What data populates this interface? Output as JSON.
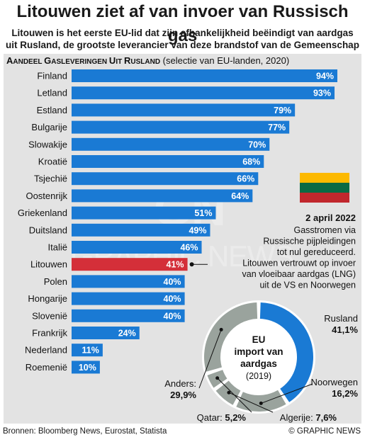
{
  "headline": "Litouwen ziet af van invoer van Russisch gas",
  "subtitle_lines": [
    "Litouwen is het eerste EU-lid dat zijn afhankelijkheid beëindigt van aardgas",
    "uit Rusland, de grootste leverancier van deze brandstof van de Gemeenschap"
  ],
  "source": "Bronnen: Bloomberg News, Eurostat, Statista",
  "credit": "© GRAPHIC NEWS",
  "watermark": "GRAPHIC NEWS",
  "colors": {
    "bar": "#1a7ad4",
    "highlight": "#d42f39",
    "panel": "#e3e3e3",
    "donut_main": "#1a7ad4",
    "donut_other": "#9aa39d"
  },
  "chart_data": [
    {
      "type": "bar",
      "orientation": "horizontal",
      "title_caps": "Aandeel Gasleveringen uit Rusland",
      "title_note": "(selectie van EU-landen, 2020)",
      "categories": [
        "Finland",
        "Letland",
        "Estland",
        "Bulgarije",
        "Slowakije",
        "Kroatië",
        "Tsjechië",
        "Oostenrijk",
        "Griekenland",
        "Duitsland",
        "Italië",
        "Litouwen",
        "Polen",
        "Hongarije",
        "Slovenië",
        "Frankrijk",
        "Nederland",
        "Roemenië"
      ],
      "values": [
        94,
        93,
        79,
        77,
        70,
        68,
        66,
        64,
        51,
        49,
        46,
        41,
        40,
        40,
        40,
        24,
        11,
        10
      ],
      "value_labels": [
        "94%",
        "93%",
        "79%",
        "77%",
        "70%",
        "68%",
        "66%",
        "64%",
        "51%",
        "49%",
        "46%",
        "41%",
        "40%",
        "40%",
        "40%",
        "24%",
        "11%",
        "10%"
      ],
      "highlight": "Litouwen",
      "annotation": {
        "date": "2 april 2022",
        "lines": [
          "Gasstromen via",
          "Russische pijpleidingen",
          "tot nul gereduceerd.",
          "Litouwen vertrouwt op invoer",
          "van vloeibaar aardgas (LNG)",
          "uit de VS en Noorwegen"
        ]
      }
    },
    {
      "type": "pie",
      "style": "donut",
      "center_lines": [
        "EU",
        "import van",
        "aardgas",
        "(2019)"
      ],
      "slices": [
        {
          "name": "Rusland",
          "value": 41.1,
          "label": "41,1%"
        },
        {
          "name": "Noorwegen",
          "value": 16.2,
          "label": "16,2%"
        },
        {
          "name": "Algerije:",
          "value": 7.6,
          "label": "7,6%"
        },
        {
          "name": "Qatar:",
          "value": 5.2,
          "label": "5,2%"
        },
        {
          "name": "Anders:",
          "value": 29.9,
          "label": "29,9%"
        }
      ]
    }
  ]
}
